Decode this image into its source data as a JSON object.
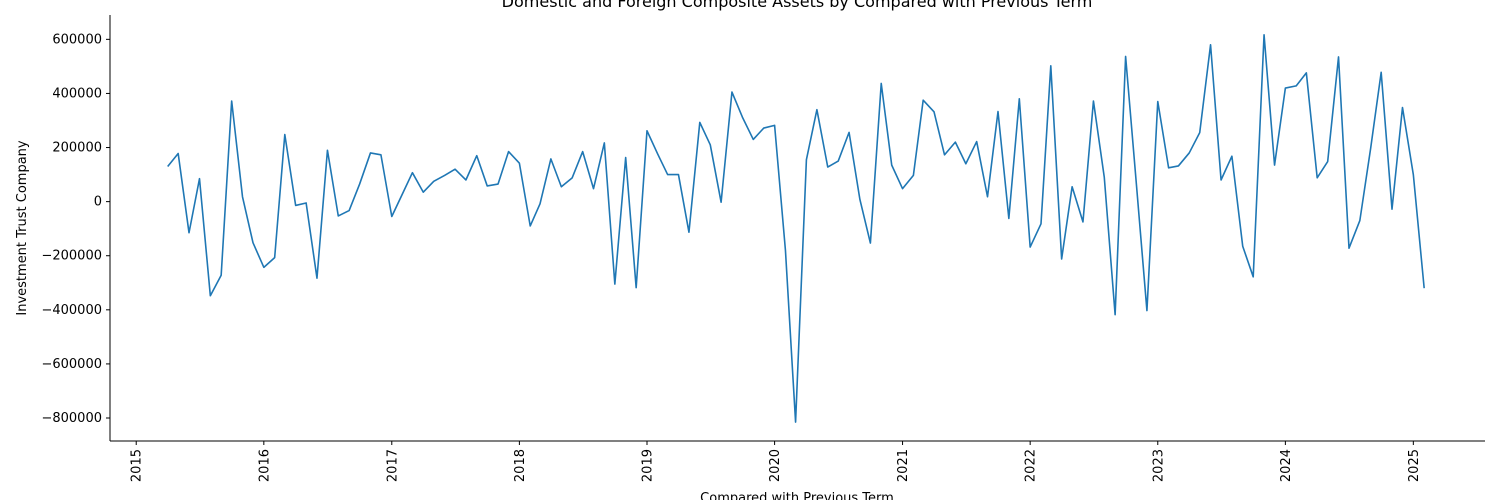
{
  "chart_data": {
    "type": "line",
    "title": "Domestic and Foreign Composite Assets by Compared with Previous Term",
    "xlabel": "Compared with Previous Term",
    "ylabel": "Investment Trust Company",
    "xlim": [
      "2014-10-18",
      "2025-07-25"
    ],
    "ylim": [
      -885000,
      690000
    ],
    "x_ticks": [
      "2015",
      "2016",
      "2017",
      "2018",
      "2019",
      "2020",
      "2021",
      "2022",
      "2023",
      "2024",
      "2025"
    ],
    "y_ticks": [
      -800000,
      -600000,
      -400000,
      -200000,
      0,
      200000,
      400000,
      600000
    ],
    "y_tick_labels": [
      "−800000",
      "−600000",
      "−400000",
      "−200000",
      "0",
      "200000",
      "400000",
      "600000"
    ],
    "grid": false,
    "series": [
      {
        "color": "#1f77b4",
        "start": "2015-04",
        "frequency": "monthly",
        "values": [
          130000,
          178000,
          -115000,
          85000,
          -348000,
          -272000,
          372000,
          18000,
          -152000,
          -243000,
          -207000,
          248000,
          -14000,
          -5000,
          -283000,
          190000,
          -53000,
          -33000,
          65000,
          180000,
          173000,
          -55000,
          30000,
          107000,
          35000,
          75000,
          97000,
          120000,
          80000,
          170000,
          58000,
          65000,
          185000,
          142000,
          -90000,
          -8000,
          158000,
          55000,
          88000,
          185000,
          48000,
          217000,
          -305000,
          163000,
          -318000,
          262000,
          175000,
          100000,
          100000,
          -113000,
          293000,
          210000,
          -2000,
          405000,
          312000,
          230000,
          272000,
          282000,
          -180000,
          -815000,
          155000,
          340000,
          128000,
          150000,
          256000,
          8000,
          -153000,
          437000,
          135000,
          48000,
          97000,
          375000,
          332000,
          173000,
          220000,
          140000,
          222000,
          18000,
          333000,
          -62000,
          380000,
          -168000,
          -82000,
          502000,
          -212000,
          55000,
          -75000,
          372000,
          90000,
          -418000,
          537000,
          62000,
          -403000,
          370000,
          125000,
          132000,
          180000,
          255000,
          580000,
          80000,
          168000,
          -165000,
          -278000,
          617000,
          135000,
          420000,
          428000,
          476000,
          88000,
          148000,
          535000,
          -172000,
          -70000,
          198000,
          478000,
          -28000,
          348000,
          100000,
          -320000
        ]
      }
    ]
  }
}
